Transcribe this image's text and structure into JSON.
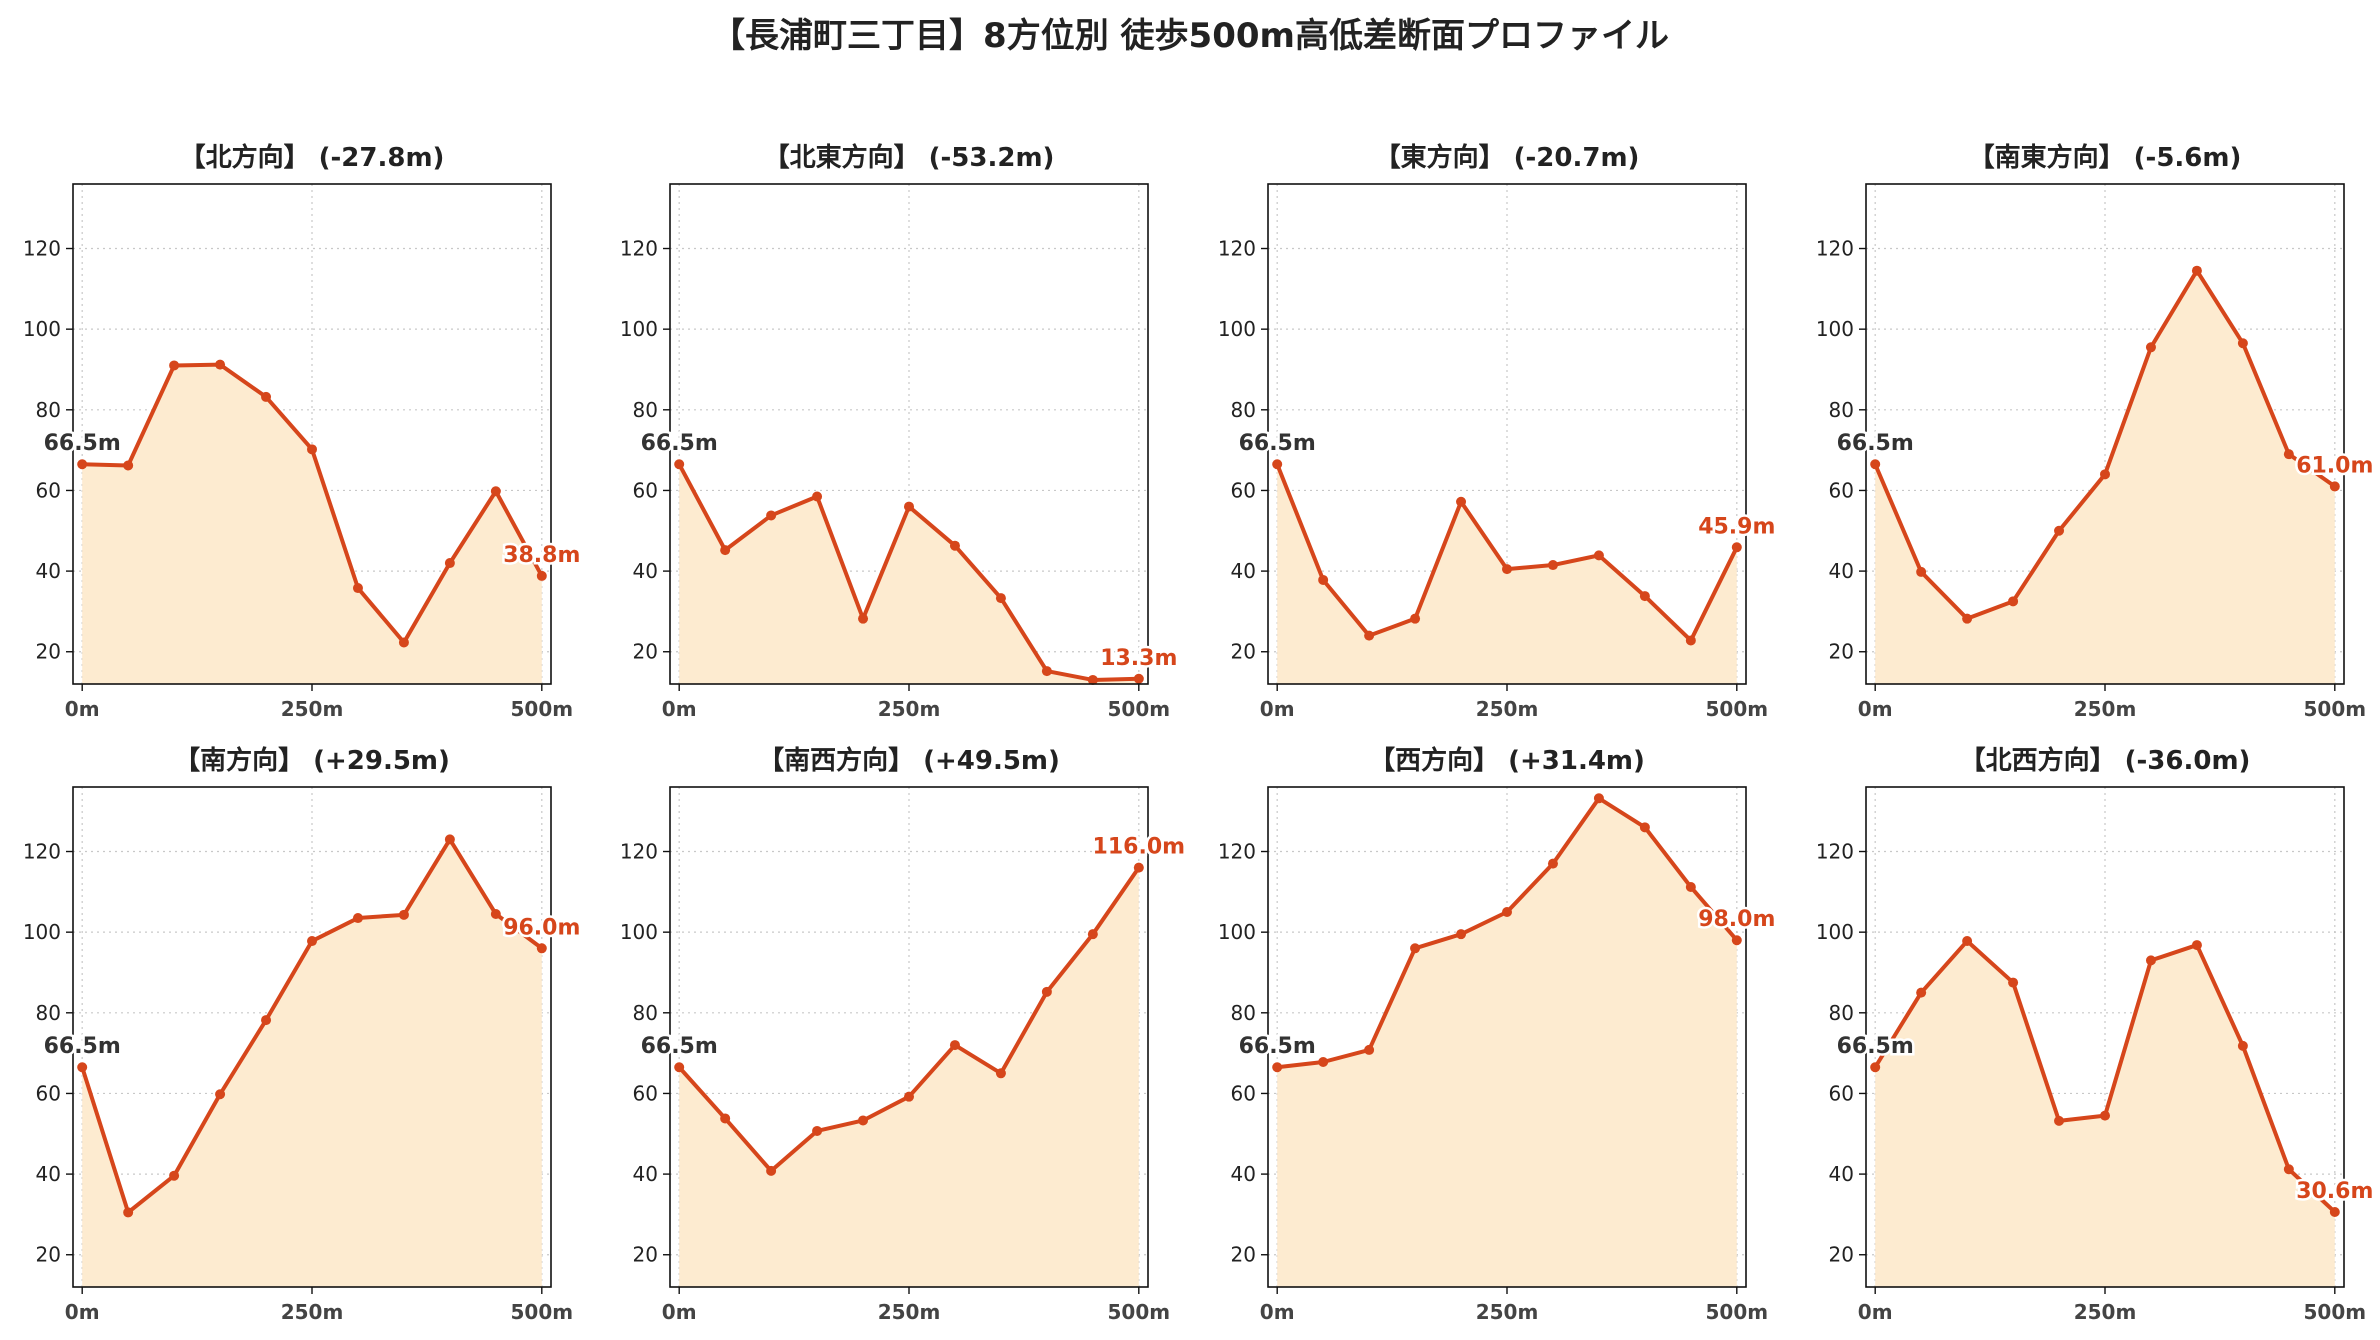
{
  "title": "【長浦町三丁目】8方位別 徒歩500m高低差断面プロファイル",
  "chart_data": [
    {
      "type": "area",
      "title": "【北方向】 (-27.8m)",
      "x": [
        0,
        50,
        100,
        150,
        200,
        250,
        300,
        350,
        400,
        450,
        500
      ],
      "values": [
        66.5,
        66.2,
        91.0,
        91.2,
        83.2,
        70.2,
        35.8,
        22.3,
        42.0,
        59.8,
        38.8
      ],
      "start_label": "66.5m",
      "end_label": "38.8m",
      "xticks": [
        "0m",
        "250m",
        "500m"
      ],
      "xlim": [
        -10,
        510
      ],
      "ylim": [
        12,
        136
      ],
      "yticks": [
        20,
        40,
        60,
        80,
        100,
        120
      ]
    },
    {
      "type": "area",
      "title": "【北東方向】 (-53.2m)",
      "x": [
        0,
        50,
        100,
        150,
        200,
        250,
        300,
        350,
        400,
        450,
        500
      ],
      "values": [
        66.5,
        45.2,
        53.8,
        58.5,
        28.2,
        56.0,
        46.3,
        33.3,
        15.2,
        13.0,
        13.3
      ],
      "start_label": "66.5m",
      "end_label": "13.3m",
      "xticks": [
        "0m",
        "250m",
        "500m"
      ],
      "xlim": [
        -10,
        510
      ],
      "ylim": [
        12,
        136
      ],
      "yticks": [
        20,
        40,
        60,
        80,
        100,
        120
      ]
    },
    {
      "type": "area",
      "title": "【東方向】 (-20.7m)",
      "x": [
        0,
        50,
        100,
        150,
        200,
        250,
        300,
        350,
        400,
        450,
        500
      ],
      "values": [
        66.5,
        37.8,
        24.0,
        28.2,
        57.2,
        40.5,
        41.5,
        43.9,
        33.8,
        22.8,
        45.9
      ],
      "start_label": "66.5m",
      "end_label": "45.9m",
      "xticks": [
        "0m",
        "250m",
        "500m"
      ],
      "xlim": [
        -10,
        510
      ],
      "ylim": [
        12,
        136
      ],
      "yticks": [
        20,
        40,
        60,
        80,
        100,
        120
      ]
    },
    {
      "type": "area",
      "title": "【南東方向】 (-5.6m)",
      "x": [
        0,
        50,
        100,
        150,
        200,
        250,
        300,
        350,
        400,
        450,
        500
      ],
      "values": [
        66.5,
        39.8,
        28.2,
        32.5,
        50.0,
        64.0,
        95.5,
        114.5,
        96.5,
        69.0,
        61.0
      ],
      "start_label": "66.5m",
      "end_label": "61.0m",
      "xticks": [
        "0m",
        "250m",
        "500m"
      ],
      "xlim": [
        -10,
        510
      ],
      "ylim": [
        12,
        136
      ],
      "yticks": [
        20,
        40,
        60,
        80,
        100,
        120
      ]
    },
    {
      "type": "area",
      "title": "【南方向】 (+29.5m)",
      "x": [
        0,
        50,
        100,
        150,
        200,
        250,
        300,
        350,
        400,
        450,
        500
      ],
      "values": [
        66.5,
        30.5,
        39.6,
        59.8,
        78.2,
        97.8,
        103.5,
        104.3,
        123.0,
        104.5,
        96.0
      ],
      "start_label": "66.5m",
      "end_label": "96.0m",
      "xticks": [
        "0m",
        "250m",
        "500m"
      ],
      "xlim": [
        -10,
        510
      ],
      "ylim": [
        12,
        136
      ],
      "yticks": [
        20,
        40,
        60,
        80,
        100,
        120
      ]
    },
    {
      "type": "area",
      "title": "【南西方向】 (+49.5m)",
      "x": [
        0,
        50,
        100,
        150,
        200,
        250,
        300,
        350,
        400,
        450,
        500
      ],
      "values": [
        66.5,
        53.8,
        40.8,
        50.7,
        53.3,
        59.2,
        72.0,
        65.0,
        85.2,
        99.5,
        116.0
      ],
      "start_label": "66.5m",
      "end_label": "116.0m",
      "xticks": [
        "0m",
        "250m",
        "500m"
      ],
      "xlim": [
        -10,
        510
      ],
      "ylim": [
        12,
        136
      ],
      "yticks": [
        20,
        40,
        60,
        80,
        100,
        120
      ]
    },
    {
      "type": "area",
      "title": "【西方向】 (+31.4m)",
      "x": [
        0,
        50,
        100,
        150,
        200,
        250,
        300,
        350,
        400,
        450,
        500
      ],
      "values": [
        66.5,
        67.8,
        70.8,
        96.0,
        99.5,
        105.0,
        117.0,
        133.2,
        126.0,
        111.2,
        98.0
      ],
      "start_label": "66.5m",
      "end_label": "98.0m",
      "xticks": [
        "0m",
        "250m",
        "500m"
      ],
      "xlim": [
        -10,
        510
      ],
      "ylim": [
        12,
        136
      ],
      "yticks": [
        20,
        40,
        60,
        80,
        100,
        120
      ]
    },
    {
      "type": "area",
      "title": "【北西方向】 (-36.0m)",
      "x": [
        0,
        50,
        100,
        150,
        200,
        250,
        300,
        350,
        400,
        450,
        500
      ],
      "values": [
        66.5,
        85.0,
        97.8,
        87.5,
        53.2,
        54.5,
        93.0,
        96.8,
        71.8,
        41.2,
        30.6
      ],
      "start_label": "66.5m",
      "end_label": "30.6m",
      "xticks": [
        "0m",
        "250m",
        "500m"
      ],
      "xlim": [
        -10,
        510
      ],
      "ylim": [
        12,
        136
      ],
      "yticks": [
        20,
        40,
        60,
        80,
        100,
        120
      ]
    }
  ],
  "style": {
    "line_color": "#d6461b",
    "fill_color": "#fdebd0",
    "start_label_color": "#333333",
    "end_label_color": "#d6461b",
    "grid": "dotted"
  }
}
